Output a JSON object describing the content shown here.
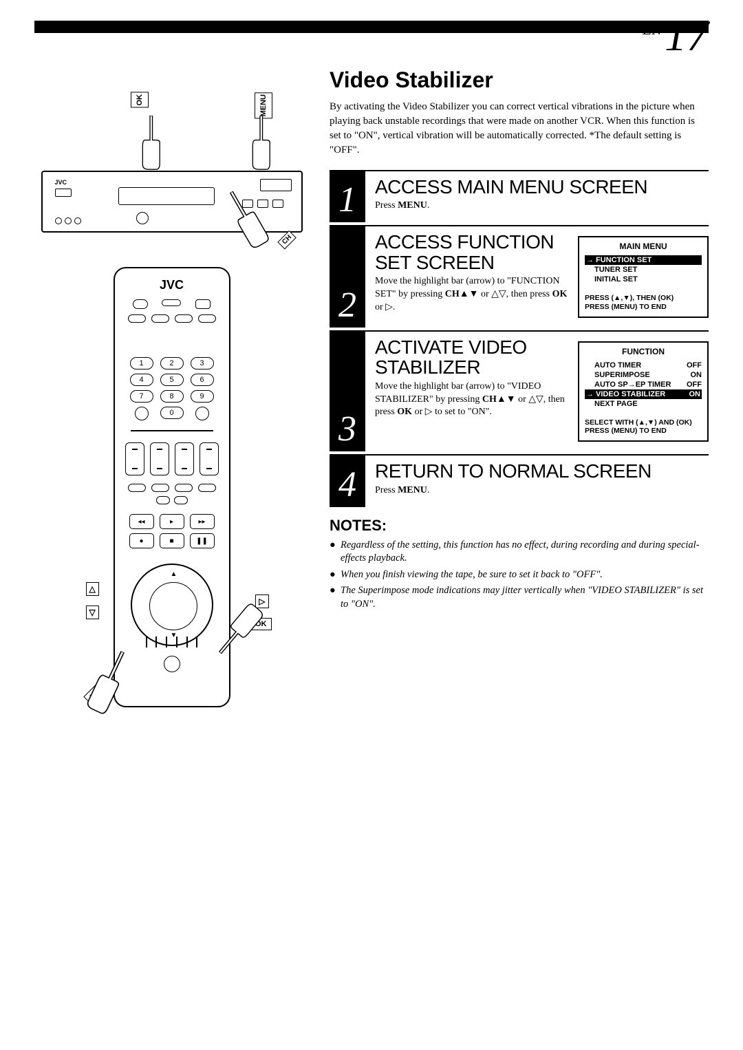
{
  "page": {
    "lang": "EN",
    "number": "17"
  },
  "section": {
    "title": "Video Stabilizer",
    "intro": "By activating the Video Stabilizer you can correct vertical vibrations in the picture when playing back unstable recordings that were made on another VCR. When this function is set to \"ON\", vertical vibration will be automatically corrected. *The default setting is \"OFF\"."
  },
  "callouts": {
    "ok": "OK",
    "menu": "MENU",
    "ch": "CH"
  },
  "steps": [
    {
      "num": "1",
      "title": "ACCESS MAIN MENU SCREEN",
      "desc_pre": "Press ",
      "desc_bold": "MENU",
      "desc_post": "."
    },
    {
      "num": "2",
      "title": "ACCESS FUNCTION SET SCREEN",
      "desc_pre": "Move the highlight bar (arrow) to \"FUNCTION SET\" by pressing ",
      "desc_bold": "CH▲▼",
      "desc_mid": " or △▽, then press ",
      "desc_bold2": "OK",
      "desc_post": " or ▷.",
      "osd": {
        "title": "MAIN MENU",
        "items": [
          {
            "label": "FUNCTION SET",
            "highlighted": true,
            "arrow": "→"
          },
          {
            "label": "TUNER SET"
          },
          {
            "label": "INITIAL SET"
          }
        ],
        "footer1": "PRESS (▲,▼), THEN (OK)",
        "footer2": "PRESS (MENU) TO END"
      }
    },
    {
      "num": "3",
      "title": "ACTIVATE VIDEO STABILIZER",
      "desc_pre": "Move the highlight bar (arrow) to \"VIDEO STABILIZER\" by pressing ",
      "desc_bold": "CH▲▼",
      "desc_mid": " or △▽, then press ",
      "desc_bold2": "OK",
      "desc_post": " or ▷ to set to \"ON\".",
      "osd": {
        "title": "FUNCTION",
        "items": [
          {
            "label": "AUTO TIMER",
            "value": "OFF"
          },
          {
            "label": "SUPERIMPOSE",
            "value": "ON"
          },
          {
            "label": "AUTO SP→EP TIMER",
            "value": "OFF"
          },
          {
            "label": "VIDEO STABILIZER",
            "value": "ON",
            "highlighted": true,
            "arrow": "→"
          },
          {
            "label": "NEXT PAGE"
          }
        ],
        "footer1": "SELECT WITH (▲,▼) AND (OK)",
        "footer2": "PRESS (MENU) TO END"
      }
    },
    {
      "num": "4",
      "title": "RETURN TO NORMAL SCREEN",
      "desc_pre": "Press ",
      "desc_bold": "MENU",
      "desc_post": "."
    }
  ],
  "notes": {
    "title": "NOTES:",
    "items": [
      "Regardless of the setting, this function has no effect, during recording and during special-effects playback.",
      "When you finish viewing the tape, be sure to set it back to \"OFF\".",
      "The Superimpose mode indications may jitter vertically when \"VIDEO STABILIZER\" is set to \"ON\"."
    ]
  },
  "remote": {
    "brand": "JVC",
    "numpad": [
      "1",
      "2",
      "3",
      "4",
      "5",
      "6",
      "7",
      "8",
      "9",
      "",
      "0",
      ""
    ]
  }
}
